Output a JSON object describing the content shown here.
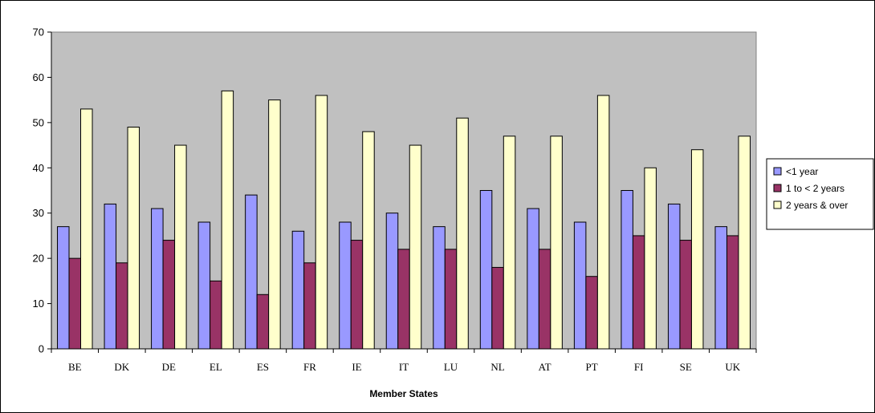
{
  "chart_data": {
    "type": "bar",
    "title": "",
    "xlabel": "Member States",
    "ylabel": "",
    "ylim": [
      0,
      70
    ],
    "yticks": [
      0,
      10,
      20,
      30,
      40,
      50,
      60,
      70
    ],
    "grid": false,
    "legend_position": "right",
    "categories": [
      "BE",
      "DK",
      "DE",
      "EL",
      "ES",
      "FR",
      "IE",
      "IT",
      "LU",
      "NL",
      "AT",
      "PT",
      "FI",
      "SE",
      "UK"
    ],
    "series": [
      {
        "name": "<1 year",
        "color": "#9999FF",
        "values": [
          27,
          32,
          31,
          28,
          34,
          26,
          28,
          30,
          27,
          35,
          31,
          28,
          35,
          32,
          27
        ]
      },
      {
        "name": "1 to < 2 years",
        "color": "#993366",
        "values": [
          20,
          19,
          24,
          15,
          12,
          19,
          24,
          22,
          22,
          18,
          22,
          16,
          25,
          24,
          25
        ]
      },
      {
        "name": "2 years & over",
        "color": "#FFFFCC",
        "values": [
          53,
          49,
          45,
          57,
          55,
          56,
          48,
          45,
          51,
          47,
          47,
          56,
          40,
          44,
          47
        ]
      }
    ],
    "plot_background": "#C0C0C0"
  }
}
